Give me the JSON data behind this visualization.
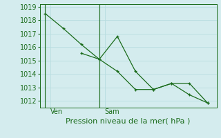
{
  "bg_color": "#d4ecee",
  "grid_color": "#b8dde0",
  "line_color": "#1a6b1a",
  "line1_x": [
    0,
    1,
    2,
    3,
    4,
    5,
    6,
    7,
    8,
    9
  ],
  "line1_y": [
    1018.5,
    1017.4,
    1016.2,
    1015.1,
    1014.2,
    1012.85,
    1012.85,
    1013.3,
    1013.3,
    1011.85
  ],
  "line2_x": [
    2,
    3,
    4,
    5,
    6,
    7,
    8,
    9
  ],
  "line2_y": [
    1015.55,
    1015.1,
    1016.8,
    1014.2,
    1012.85,
    1013.3,
    1012.45,
    1011.85
  ],
  "xtick_positions": [
    0.3,
    3.3
  ],
  "xtick_labels": [
    "Ven",
    "Sam"
  ],
  "vline_positions": [
    0,
    3
  ],
  "ylim": [
    1011.5,
    1019.2
  ],
  "xlim": [
    -0.3,
    9.5
  ],
  "yticks": [
    1012,
    1013,
    1014,
    1015,
    1016,
    1017,
    1018,
    1019
  ],
  "xlabel": "Pression niveau de la mer( hPa )",
  "xlabel_fontsize": 8,
  "tick_fontsize": 7
}
